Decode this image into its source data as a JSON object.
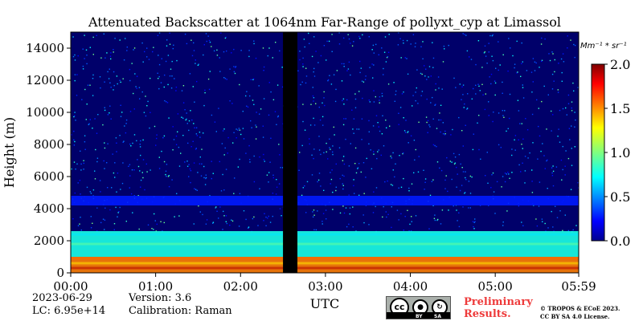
{
  "chart_data": {
    "type": "heatmap",
    "title": "Attenuated Backscatter at 1064nm Far-Range of pollyxt_cyp at Limassol",
    "xlabel": "UTC",
    "ylabel": "Height (m)",
    "x_ticks": [
      "00:00",
      "01:00",
      "02:00",
      "03:00",
      "04:00",
      "05:00",
      "05:59"
    ],
    "y_ticks": [
      0,
      2000,
      4000,
      6000,
      8000,
      10000,
      12000,
      14000
    ],
    "ylim": [
      0,
      15000
    ],
    "xlim_hours": [
      0,
      5.983
    ],
    "colorbar": {
      "unit_label": "Mm⁻¹ * sr⁻¹",
      "range": [
        0.0,
        2.0
      ],
      "ticks": [
        "0.0",
        "0.5",
        "1.0",
        "1.5",
        "2.0"
      ],
      "colormap": "jet"
    },
    "no_data_interval_hours": [
      2.5,
      2.67
    ],
    "layers": [
      {
        "name": "near-surface aerosol layer",
        "height_range_m": [
          0,
          1000
        ],
        "value_approx": 1.5
      },
      {
        "name": "boundary layer",
        "height_range_m": [
          1000,
          2600
        ],
        "value_approx": 0.8
      },
      {
        "name": "lofted layer",
        "height_range_m": [
          4200,
          4800
        ],
        "value_approx": 0.3
      },
      {
        "name": "free troposphere noise",
        "height_range_m": [
          5000,
          15000
        ],
        "value_approx": 0.05
      }
    ],
    "grid": false,
    "legend": "colorbar-right"
  },
  "info": {
    "date": "2023-06-29",
    "lc": "LC: 6.95e+14",
    "version": "Version: 3.6",
    "calibration": "Calibration: Raman"
  },
  "license": {
    "cc_icons": [
      "cc",
      "by",
      "sa"
    ],
    "cc_text_by": "BY",
    "cc_text_sa": "SA",
    "preliminary_line1": "Preliminary",
    "preliminary_line2": "Results.",
    "copyright_line1": "© TROPOS & ECoE 2023.",
    "copyright_line2": "CC BY SA 4.0 License."
  },
  "colors": {
    "preliminary": "#ee3b3b",
    "background_noise": "#000080"
  }
}
